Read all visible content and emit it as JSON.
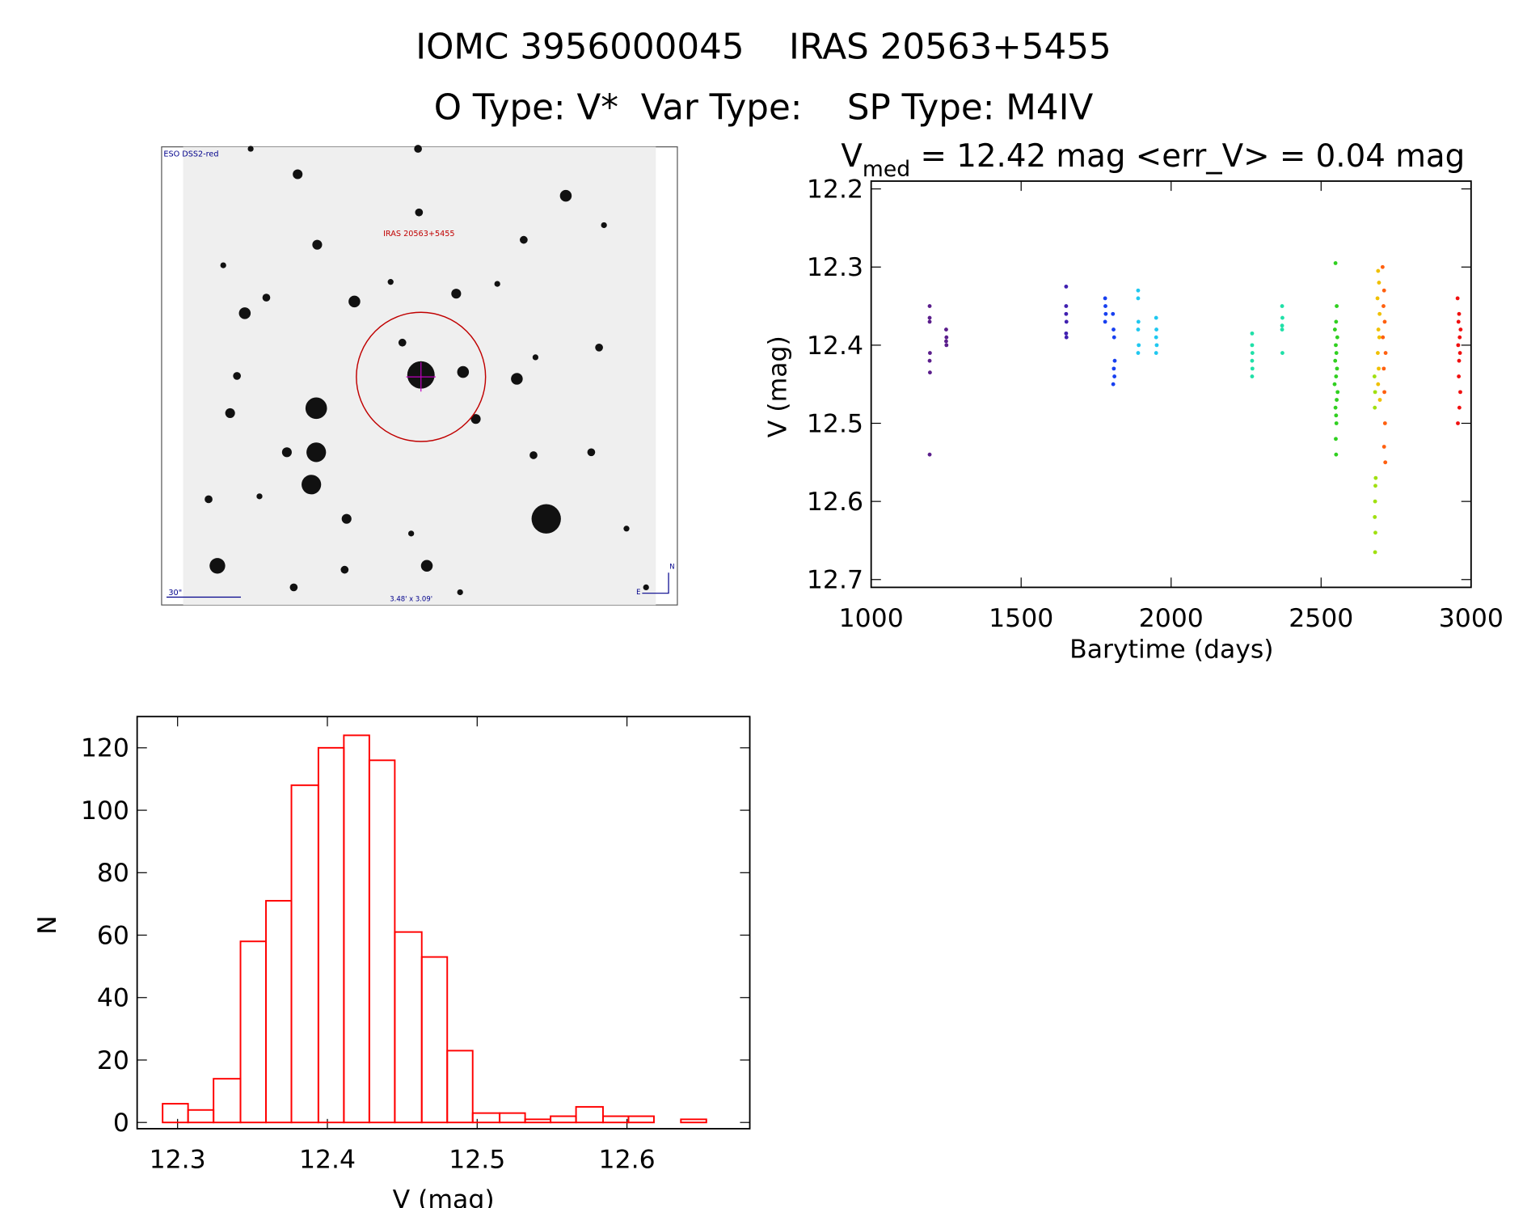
{
  "header": {
    "line1": "IOMC 3956000045    IRAS 20563+5455",
    "line2": "O Type: V*  Var Type:    SP Type: M4IV"
  },
  "image": {
    "labels": [
      "ESO DSS2-red",
      "IRAS 20563+5455",
      "30\"",
      "3.48' x 3.09'",
      "N",
      "E"
    ]
  },
  "chart_data": [
    {
      "type": "scatter",
      "title": {
        "main": "V",
        "subscript": "med",
        "rest": " = 12.42 mag <err_V> = 0.04 mag"
      },
      "x_label": "Barytime (days)",
      "y_label": "V (mag)",
      "xlim": [
        1000,
        3000
      ],
      "xticks": [
        1000,
        1500,
        2000,
        2500,
        3000
      ],
      "ylim": [
        12.71,
        12.19
      ],
      "yticks": [
        12.2,
        12.3,
        12.4,
        12.5,
        12.6,
        12.7
      ],
      "series": [
        {
          "color": "#5b1e8c",
          "x": [
            1195,
            1195,
            1195,
            1196,
            1195,
            1196,
            1195,
            1250,
            1251,
            1250,
            1251
          ],
          "values": [
            12.35,
            12.365,
            12.37,
            12.41,
            12.42,
            12.435,
            12.54,
            12.38,
            12.39,
            12.395,
            12.4
          ]
        },
        {
          "color": "#4020b0",
          "x": [
            1650,
            1650,
            1650,
            1651,
            1650,
            1651
          ],
          "values": [
            12.325,
            12.35,
            12.36,
            12.37,
            12.385,
            12.39
          ]
        },
        {
          "color": "#1840f0",
          "x": [
            1780,
            1781,
            1782,
            1780,
            1806,
            1808,
            1810,
            1812,
            1809,
            1811,
            1807
          ],
          "values": [
            12.34,
            12.35,
            12.36,
            12.37,
            12.36,
            12.38,
            12.39,
            12.42,
            12.43,
            12.44,
            12.45
          ]
        },
        {
          "color": "#20c8f0",
          "x": [
            1890,
            1890,
            1891,
            1890,
            1892,
            1890,
            1950,
            1951,
            1950,
            1952,
            1950
          ],
          "values": [
            12.33,
            12.34,
            12.37,
            12.38,
            12.4,
            12.41,
            12.365,
            12.38,
            12.39,
            12.4,
            12.41
          ]
        },
        {
          "color": "#20e0a8",
          "x": [
            2270,
            2270,
            2271,
            2270,
            2271,
            2270,
            2370,
            2371,
            2370,
            2370,
            2371
          ],
          "values": [
            12.385,
            12.4,
            12.41,
            12.42,
            12.43,
            12.44,
            12.35,
            12.365,
            12.375,
            12.38,
            12.41
          ]
        },
        {
          "color": "#30d020",
          "x": [
            2548,
            2552,
            2550,
            2546,
            2554,
            2549,
            2551,
            2547,
            2553,
            2550,
            2545,
            2555,
            2552,
            2548,
            2550,
            2551,
            2549,
            2550
          ],
          "values": [
            12.295,
            12.35,
            12.37,
            12.38,
            12.39,
            12.4,
            12.41,
            12.42,
            12.43,
            12.44,
            12.45,
            12.46,
            12.47,
            12.48,
            12.49,
            12.5,
            12.52,
            12.54
          ]
        },
        {
          "color": "#a0e010",
          "x": [
            2678,
            2680,
            2679,
            2682,
            2681,
            2680,
            2679,
            2681,
            2680
          ],
          "values": [
            12.44,
            12.46,
            12.48,
            12.57,
            12.58,
            12.6,
            12.62,
            12.64,
            12.665
          ]
        },
        {
          "color": "#f0c000",
          "x": [
            2690,
            2693,
            2688,
            2695,
            2691,
            2694,
            2689,
            2692,
            2690,
            2696
          ],
          "values": [
            12.305,
            12.32,
            12.34,
            12.36,
            12.38,
            12.39,
            12.41,
            12.43,
            12.45,
            12.47
          ]
        },
        {
          "color": "#ff6010",
          "x": [
            2705,
            2710,
            2708,
            2712,
            2706,
            2715,
            2709,
            2711,
            2713,
            2710,
            2714
          ],
          "values": [
            12.3,
            12.33,
            12.35,
            12.37,
            12.39,
            12.41,
            12.43,
            12.46,
            12.5,
            12.53,
            12.55
          ]
        },
        {
          "color": "#f01010",
          "x": [
            2955,
            2960,
            2958,
            2965,
            2962,
            2957,
            2963,
            2960,
            2959,
            2964,
            2961,
            2956
          ],
          "values": [
            12.34,
            12.36,
            12.37,
            12.38,
            12.39,
            12.4,
            12.41,
            12.42,
            12.44,
            12.46,
            12.48,
            12.5
          ]
        }
      ]
    },
    {
      "type": "histogram",
      "x_label": "V (mag)",
      "y_label": "N",
      "color": "#ff0000",
      "bins": [
        12.29,
        12.307,
        12.324,
        12.342,
        12.359,
        12.376,
        12.394,
        12.411,
        12.428,
        12.445,
        12.463,
        12.48,
        12.497,
        12.515,
        12.532,
        12.549,
        12.566,
        12.584,
        12.601,
        12.618,
        12.636,
        12.653
      ],
      "values": [
        6,
        4,
        14,
        58,
        71,
        108,
        120,
        124,
        116,
        61,
        53,
        23,
        3,
        3,
        1,
        2,
        5,
        2,
        2,
        0,
        1
      ],
      "xlim": [
        12.273,
        12.682
      ],
      "xticks": [
        12.3,
        12.4,
        12.5,
        12.6
      ],
      "ylim": [
        -2,
        130
      ],
      "yticks": [
        0,
        20,
        40,
        60,
        80,
        100,
        120
      ]
    }
  ]
}
